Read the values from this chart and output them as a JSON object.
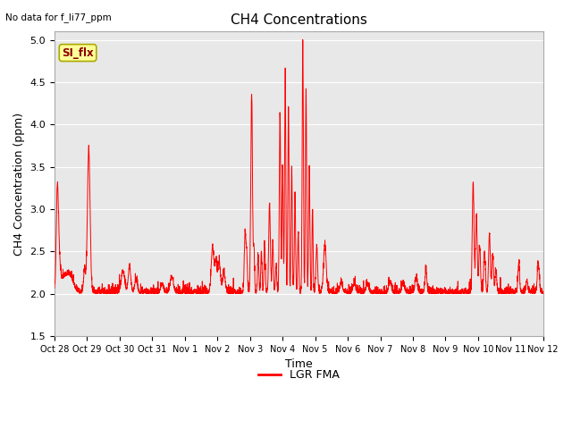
{
  "title": "CH4 Concentrations",
  "xlabel": "Time",
  "ylabel": "CH4 Concentration (ppm)",
  "top_left_text": "No data for f_li77_ppm",
  "legend_label": "LGR FMA",
  "legend_label2": "SI_flx",
  "ylim": [
    1.5,
    5.1
  ],
  "yticks": [
    1.5,
    2.0,
    2.5,
    3.0,
    3.5,
    4.0,
    4.5,
    5.0
  ],
  "line_color": "#FF0000",
  "bg_color": "#E8E8E8",
  "si_flx_box_color": "#FFFF99",
  "si_flx_text_color": "#8B0000",
  "si_flx_edge_color": "#AAAA00",
  "x_tick_labels": [
    "Oct 28",
    "Oct 29",
    "Oct 30",
    "Oct 31",
    "Nov 1",
    "Nov 2",
    "Nov 3",
    "Nov 4",
    "Nov 5",
    "Nov 6",
    "Nov 7",
    "Nov 8",
    "Nov 9",
    "Nov 10",
    "Nov 11",
    "Nov 12"
  ],
  "figsize": [
    6.4,
    4.8
  ],
  "dpi": 100
}
